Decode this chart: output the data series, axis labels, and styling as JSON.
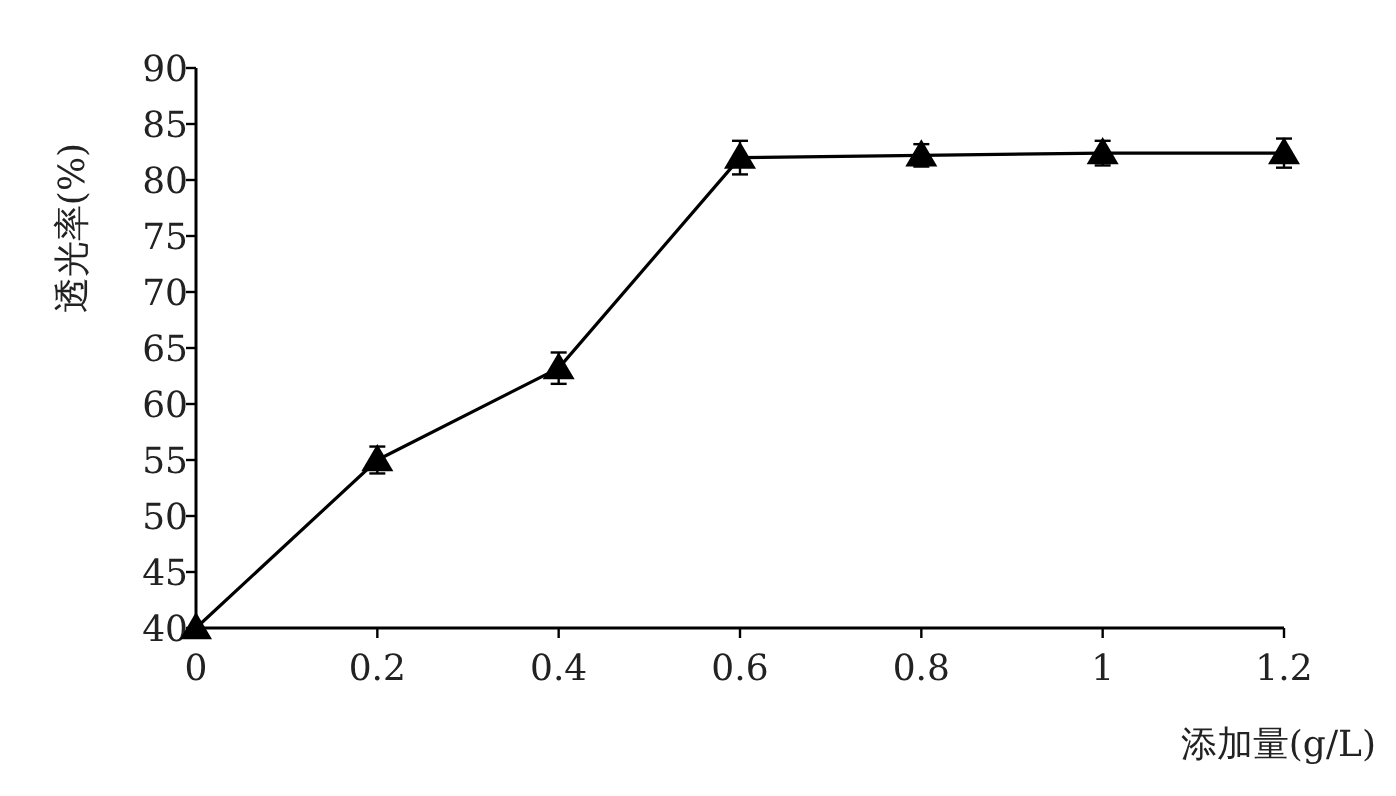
{
  "chart_data": {
    "type": "line",
    "xlabel": "添加量(g/L)",
    "ylabel": "透光率(%)",
    "x": [
      0,
      0.2,
      0.4,
      0.6,
      0.8,
      1,
      1.2
    ],
    "series": [
      {
        "color": "#000000",
        "values": [
          40,
          55,
          63.2,
          82,
          82.2,
          82.4,
          82.4
        ],
        "errors": [
          null,
          1.2,
          1.4,
          1.5,
          1,
          1.1,
          1.3
        ]
      }
    ],
    "xlim": [
      0,
      1.2
    ],
    "ylim": [
      40,
      90
    ],
    "xticks": [
      0,
      0.2,
      0.4,
      0.6,
      0.8,
      1,
      1.2
    ],
    "yticks": [
      40,
      45,
      50,
      55,
      60,
      65,
      70,
      75,
      80,
      85,
      90
    ],
    "marker": "triangle"
  }
}
